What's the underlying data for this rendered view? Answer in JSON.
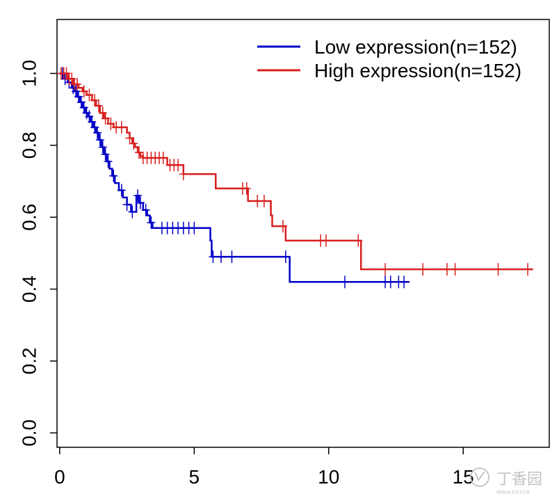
{
  "chart_data": {
    "type": "line",
    "title": "",
    "xlabel": "",
    "ylabel": "",
    "xlim": [
      -0.1,
      18.2
    ],
    "ylim": [
      -0.04,
      1.15
    ],
    "x_ticks": [
      0,
      5,
      10,
      15
    ],
    "x_tick_labels": [
      "0",
      "5",
      "10",
      "15"
    ],
    "y_ticks": [
      0.0,
      0.2,
      0.4,
      0.6,
      0.8,
      1.0
    ],
    "y_tick_labels": [
      "0.0",
      "0.2",
      "0.4",
      "0.6",
      "0.8",
      "1.0"
    ],
    "grid": false,
    "legend_position": "top-right",
    "series": [
      {
        "name": "Low expression(n=152)",
        "color": "#0000c8",
        "steps": [
          [
            0,
            1.0
          ],
          [
            0.15,
            0.985
          ],
          [
            0.3,
            0.975
          ],
          [
            0.45,
            0.96
          ],
          [
            0.55,
            0.95
          ],
          [
            0.65,
            0.935
          ],
          [
            0.75,
            0.92
          ],
          [
            0.85,
            0.905
          ],
          [
            0.95,
            0.89
          ],
          [
            1.05,
            0.88
          ],
          [
            1.15,
            0.865
          ],
          [
            1.25,
            0.85
          ],
          [
            1.35,
            0.835
          ],
          [
            1.45,
            0.815
          ],
          [
            1.55,
            0.795
          ],
          [
            1.65,
            0.775
          ],
          [
            1.75,
            0.755
          ],
          [
            1.85,
            0.735
          ],
          [
            1.95,
            0.715
          ],
          [
            2.05,
            0.695
          ],
          [
            2.2,
            0.675
          ],
          [
            2.35,
            0.655
          ],
          [
            2.5,
            0.635
          ],
          [
            2.65,
            0.615
          ],
          [
            2.85,
            0.66
          ],
          [
            2.95,
            0.64
          ],
          [
            3.1,
            0.62
          ],
          [
            3.25,
            0.605
          ],
          [
            3.35,
            0.585
          ],
          [
            3.45,
            0.57
          ],
          [
            3.6,
            0.57
          ],
          [
            5.6,
            0.535
          ],
          [
            5.65,
            0.49
          ],
          [
            8.5,
            0.49
          ],
          [
            8.55,
            0.42
          ],
          [
            13.0,
            0.42
          ]
        ],
        "censor_x": [
          0.1,
          0.2,
          0.35,
          0.5,
          0.6,
          0.7,
          0.8,
          0.9,
          1.0,
          1.1,
          1.2,
          1.3,
          1.4,
          1.5,
          1.6,
          1.7,
          1.8,
          2.0,
          2.3,
          2.5,
          2.7,
          2.9,
          3.0,
          3.2,
          3.4,
          3.8,
          4.0,
          4.2,
          4.4,
          4.6,
          4.8,
          5.0,
          5.7,
          6.0,
          6.4,
          8.4,
          10.6,
          12.1,
          12.3,
          12.6,
          12.8
        ]
      },
      {
        "name": "High expression(n=152)",
        "color": "#d81e1e",
        "steps": [
          [
            0,
            1.0
          ],
          [
            0.3,
            0.985
          ],
          [
            0.5,
            0.97
          ],
          [
            0.7,
            0.96
          ],
          [
            0.85,
            0.95
          ],
          [
            1.0,
            0.94
          ],
          [
            1.2,
            0.925
          ],
          [
            1.35,
            0.91
          ],
          [
            1.5,
            0.89
          ],
          [
            1.65,
            0.875
          ],
          [
            1.8,
            0.86
          ],
          [
            2.0,
            0.85
          ],
          [
            2.5,
            0.835
          ],
          [
            2.6,
            0.82
          ],
          [
            2.7,
            0.805
          ],
          [
            2.8,
            0.795
          ],
          [
            2.9,
            0.78
          ],
          [
            3.0,
            0.77
          ],
          [
            3.1,
            0.765
          ],
          [
            4.0,
            0.745
          ],
          [
            4.6,
            0.72
          ],
          [
            5.8,
            0.68
          ],
          [
            7.0,
            0.645
          ],
          [
            7.85,
            0.605
          ],
          [
            7.9,
            0.575
          ],
          [
            8.4,
            0.535
          ],
          [
            11.2,
            0.455
          ],
          [
            17.6,
            0.455
          ]
        ],
        "censor_x": [
          0.05,
          0.15,
          0.25,
          0.35,
          0.45,
          0.55,
          0.65,
          0.9,
          1.1,
          1.3,
          1.45,
          1.6,
          1.7,
          1.9,
          2.1,
          2.3,
          2.6,
          2.75,
          2.95,
          3.1,
          3.25,
          3.4,
          3.55,
          3.7,
          3.85,
          4.1,
          4.25,
          4.4,
          4.6,
          6.8,
          6.95,
          7.35,
          7.6,
          8.3,
          9.7,
          9.9,
          11.1,
          12.1,
          13.5,
          14.4,
          14.7,
          16.3,
          17.4
        ]
      }
    ]
  },
  "watermark": {
    "icon": "stethoscope-logo",
    "text": "丁香园",
    "subtext": "WWW.DXY.CN"
  }
}
